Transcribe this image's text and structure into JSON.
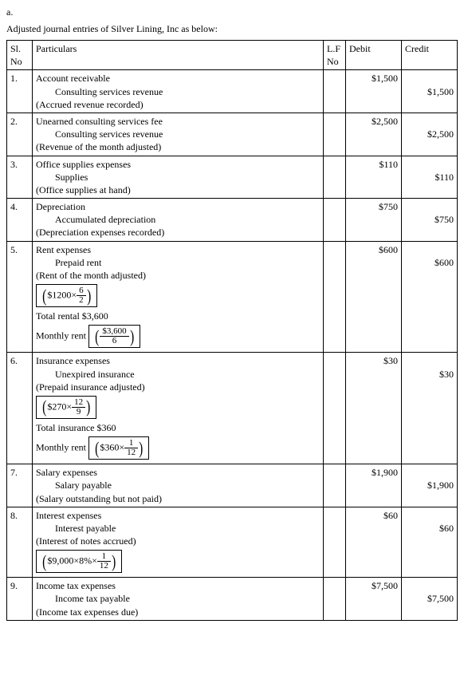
{
  "intro_a": "a.",
  "intro_text": "Adjusted journal entries of Silver Lining, Inc as below:",
  "headers": {
    "sl": "Sl. No",
    "part": "Particulars",
    "lf": "L.F No",
    "debit": "Debit",
    "credit": "Credit"
  },
  "rows": {
    "r1": {
      "sl": "1.",
      "l1": "Account receivable",
      "l2": "Consulting services revenue",
      "l3": "(Accrued revenue recorded)",
      "debit": "$1,500",
      "credit": "$1,500"
    },
    "r2": {
      "sl": "2.",
      "l1": "Unearned consulting services fee",
      "l2": "Consulting services revenue",
      "l3": "(Revenue of the month adjusted)",
      "debit": "$2,500",
      "credit": "$2,500"
    },
    "r3": {
      "sl": "3.",
      "l1": "Office supplies expenses",
      "l2": "Supplies",
      "l3": "(Office supplies at hand)",
      "debit": "$110",
      "credit": "$110"
    },
    "r4": {
      "sl": "4.",
      "l1": "Depreciation",
      "l2": "Accumulated depreciation",
      "l3": "(Depreciation expenses recorded)",
      "debit": "$750",
      "credit": "$750"
    },
    "r5": {
      "sl": "5.",
      "l1": "Rent expenses",
      "l2": "Prepaid rent",
      "l3": "(Rent of the month adjusted)",
      "eq1_left": "$1200×",
      "eq1_num": "6",
      "eq1_den": "2",
      "total_label": "Total rental $3,600",
      "month_label": "Monthly rent",
      "eq2_num": "$3,600",
      "eq2_den": "6",
      "debit": "$600",
      "credit": "$600"
    },
    "r6": {
      "sl": "6.",
      "l1": "Insurance expenses",
      "l2": "Unexpired insurance",
      "l3": "(Prepaid insurance adjusted)",
      "eq1_left": "$270×",
      "eq1_num": "12",
      "eq1_den": "9",
      "total_label": "Total insurance $360",
      "month_label": "Monthly rent",
      "eq2_left": "$360×",
      "eq2_num": "1",
      "eq2_den": "12",
      "debit": "$30",
      "credit": "$30"
    },
    "r7": {
      "sl": "7.",
      "l1": "Salary expenses",
      "l2": "Salary payable",
      "l3": "(Salary outstanding but not paid)",
      "debit": "$1,900",
      "credit": "$1,900"
    },
    "r8": {
      "sl": "8.",
      "l1": "Interest expenses",
      "l2": "Interest payable",
      "l3": "(Interest of notes accrued)",
      "eq_left": "$9,000×8%×",
      "eq_num": "1",
      "eq_den": "12",
      "debit": "$60",
      "credit": "$60"
    },
    "r9": {
      "sl": "9.",
      "l1": "Income tax expenses",
      "l2": "Income tax payable",
      "l3": "(Income tax expenses due)",
      "debit": "$7,500",
      "credit": "$7,500"
    }
  }
}
